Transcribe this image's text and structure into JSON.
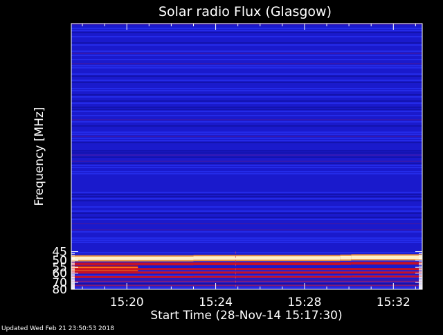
{
  "footer": {
    "updated": "Updated Wed Feb 21 23:50:53 2018"
  },
  "colors": {
    "background": "#000000",
    "text": "#ffffff",
    "base_low": "#1a1acc",
    "base_high": "#2e3bff",
    "band_hot": "#fff6d0",
    "band_red": "#cc1020",
    "band_orange": "#ff7a1a"
  },
  "chart_data": {
    "type": "heatmap",
    "title": "Solar radio Flux (Glasgow)",
    "xlabel": "Start Time (28-Nov-14 15:17:30)",
    "ylabel": "Frequency [MHz]",
    "x_unit": "minutes of 28-Nov-14 UTC (15:17:30 = 917.5)",
    "xlim": [
      917.5,
      933.3
    ],
    "ylim": [
      80,
      44.5
    ],
    "y_scale": "reciprocal",
    "x_ticks": [
      {
        "value": 920,
        "label": "15:20"
      },
      {
        "value": 924,
        "label": "15:24"
      },
      {
        "value": 928,
        "label": "15:28"
      },
      {
        "value": 932,
        "label": "15:32"
      }
    ],
    "y_ticks": [
      {
        "value": 45,
        "label": "45"
      },
      {
        "value": 50,
        "label": "50"
      },
      {
        "value": 55,
        "label": "55"
      },
      {
        "value": 60,
        "label": "60"
      },
      {
        "value": 70,
        "label": "70"
      },
      {
        "value": 80,
        "label": "80"
      }
    ],
    "grid": false,
    "legend": "none",
    "emission_bands": [
      {
        "freq_segments": [
          [
            917.5,
            923.0,
            48.8
          ],
          [
            923.0,
            929.6,
            48.6
          ],
          [
            929.6,
            930.1,
            48.4
          ],
          [
            930.1,
            933.3,
            48.2
          ]
        ],
        "intensity": "very-high",
        "color": "band_hot"
      },
      {
        "freq_segments": [
          [
            917.5,
            923.0,
            52.5
          ],
          [
            923.0,
            929.6,
            52.4
          ],
          [
            929.6,
            930.1,
            52.2
          ],
          [
            930.1,
            933.3,
            52.0
          ]
        ],
        "intensity": "high",
        "color": "band_red"
      },
      {
        "freq_segments": [
          [
            917.5,
            920.5,
            56.2
          ]
        ],
        "intensity": "very-high",
        "color": "band_orange"
      },
      {
        "freq_segments": [
          [
            917.5,
            933.3,
            56.4
          ]
        ],
        "intensity": "medium",
        "color": "band_red"
      },
      {
        "freq_segments": [
          [
            917.5,
            933.3,
            59.4
          ]
        ],
        "intensity": "medium",
        "color": "band_red"
      },
      {
        "freq_segments": [
          [
            917.5,
            923.0,
            63.8
          ],
          [
            923.0,
            929.6,
            63.6
          ],
          [
            929.6,
            930.1,
            63.4
          ],
          [
            930.1,
            933.3,
            63.2
          ]
        ],
        "intensity": "medium",
        "color": "band_red"
      },
      {
        "freq_segments": [
          [
            917.5,
            933.3,
            68.8
          ]
        ],
        "intensity": "low",
        "color": "band_red"
      },
      {
        "freq_segments": [
          [
            917.5,
            933.3,
            74.0
          ]
        ],
        "intensity": "low",
        "color": "band_red"
      }
    ],
    "spikes": [
      {
        "time": 924.9,
        "freq_range": [
          45,
          80
        ]
      }
    ]
  }
}
